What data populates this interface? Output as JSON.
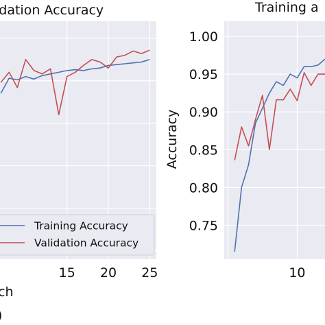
{
  "chart_data": [
    {
      "type": "line",
      "title": "idation Accuracy",
      "xlabel": "ch",
      "ylabel": "",
      "note": ")",
      "xlim": [
        6.9,
        25.8
      ],
      "ylim": [
        0.74,
        1.02
      ],
      "x_ticks": [
        "15",
        "20",
        "25"
      ],
      "y_ticks": [],
      "grid": true,
      "legend_position": "lower-left",
      "series": [
        {
          "name": "Training Accuracy",
          "color": "#4c72b0",
          "x": [
            7,
            8,
            9,
            10,
            11,
            12,
            13,
            14,
            15,
            16,
            17,
            18,
            19,
            20,
            21,
            22,
            23,
            24,
            25
          ],
          "y": [
            0.935,
            0.953,
            0.951,
            0.955,
            0.952,
            0.956,
            0.958,
            0.96,
            0.962,
            0.963,
            0.962,
            0.964,
            0.965,
            0.968,
            0.969,
            0.97,
            0.971,
            0.972,
            0.975
          ]
        },
        {
          "name": "Validation Accuracy",
          "color": "#c44e52",
          "x": [
            7,
            8,
            9,
            10,
            11,
            12,
            13,
            14,
            15,
            16,
            17,
            18,
            19,
            20,
            21,
            22,
            23,
            24,
            25
          ],
          "y": [
            0.948,
            0.96,
            0.942,
            0.975,
            0.962,
            0.958,
            0.964,
            0.91,
            0.955,
            0.96,
            0.968,
            0.975,
            0.972,
            0.965,
            0.978,
            0.98,
            0.985,
            0.982,
            0.986
          ]
        }
      ]
    },
    {
      "type": "line",
      "title": "Training a",
      "xlabel": "",
      "ylabel": "Accuracy",
      "xlim": [
        -0.5,
        14
      ],
      "ylim": [
        0.705,
        1.02
      ],
      "x_ticks": [
        "10"
      ],
      "y_ticks": [
        "0.75",
        "0.80",
        "0.85",
        "0.90",
        "0.95",
        "1.00"
      ],
      "grid": true,
      "series": [
        {
          "name": "Training Accuracy",
          "color": "#4c72b0",
          "x": [
            1,
            2,
            3,
            4,
            5,
            6,
            7,
            8,
            9,
            10,
            11,
            12,
            13,
            14
          ],
          "y": [
            0.715,
            0.8,
            0.83,
            0.885,
            0.905,
            0.925,
            0.94,
            0.935,
            0.95,
            0.945,
            0.96,
            0.96,
            0.962,
            0.97
          ]
        },
        {
          "name": "Validation Accuracy",
          "color": "#c44e52",
          "x": [
            1,
            2,
            3,
            4,
            5,
            6,
            7,
            8,
            9,
            10,
            11,
            12,
            13,
            14
          ],
          "y": [
            0.836,
            0.88,
            0.855,
            0.89,
            0.922,
            0.85,
            0.916,
            0.916,
            0.93,
            0.915,
            0.952,
            0.935,
            0.95,
            0.95
          ]
        }
      ]
    }
  ]
}
